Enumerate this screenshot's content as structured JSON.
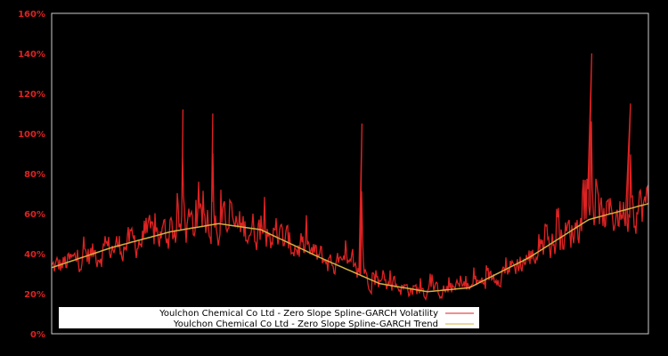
{
  "chart_data": {
    "type": "line",
    "title": "",
    "xlabel": "",
    "ylabel": "",
    "ylim": [
      0,
      160
    ],
    "y_ticks": [
      "0%",
      "20%",
      "40%",
      "60%",
      "80%",
      "100%",
      "120%",
      "140%",
      "160%"
    ],
    "y_tick_values": [
      0,
      20,
      40,
      60,
      80,
      100,
      120,
      140,
      160
    ],
    "grid": false,
    "legend_position": "lower-left inside",
    "colors": {
      "background": "#000000",
      "axis_frame": "#cccccc",
      "tick_labels": "#dd2222",
      "volatility": "#dd2222",
      "trend": "#d4b040",
      "legend_bg": "#ffffff"
    },
    "series": [
      {
        "name": "Youlchon Chemical Co Ltd - Zero Slope Spline-GARCH Volatility",
        "color": "#dd2222",
        "x_frac": [
          0.0,
          0.05,
          0.07,
          0.1,
          0.15,
          0.2,
          0.22,
          0.25,
          0.27,
          0.28,
          0.3,
          0.35,
          0.4,
          0.45,
          0.5,
          0.52,
          0.55,
          0.6,
          0.65,
          0.7,
          0.77,
          0.8,
          0.85,
          0.9,
          0.905,
          0.95,
          0.97,
          1.0
        ],
        "values": [
          30,
          45,
          60,
          40,
          50,
          55,
          112,
          60,
          110,
          70,
          50,
          42,
          35,
          28,
          18,
          105,
          25,
          15,
          22,
          25,
          20,
          55,
          40,
          60,
          140,
          70,
          115,
          50
        ]
      },
      {
        "name": "Youlchon Chemical Co Ltd - Zero Slope Spline-GARCH Trend",
        "color": "#d4b040",
        "x_frac": [
          0.0,
          0.1,
          0.2,
          0.28,
          0.35,
          0.45,
          0.55,
          0.63,
          0.7,
          0.8,
          0.9,
          1.0
        ],
        "values": [
          33,
          43,
          51,
          55,
          52,
          38,
          25,
          21,
          23,
          38,
          57,
          65
        ]
      }
    ]
  },
  "legend": {
    "items": [
      {
        "label": "Youlchon Chemical Co Ltd - Zero Slope Spline-GARCH Volatility",
        "color": "#dd2222"
      },
      {
        "label": "Youlchon Chemical Co Ltd - Zero Slope Spline-GARCH Trend",
        "color": "#d4b040"
      }
    ]
  }
}
